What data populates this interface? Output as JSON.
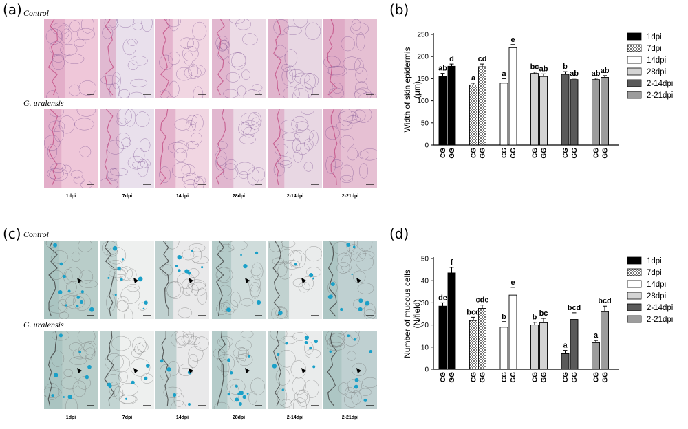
{
  "panels": {
    "a": {
      "label": "(a)",
      "row_labels": [
        "Control",
        "G. uralensis"
      ],
      "col_labels": [
        "1dpi",
        "7dpi",
        "14dpi",
        "28dpi",
        "2-14dpi",
        "2-21dpi"
      ],
      "stain": "he"
    },
    "b": {
      "label": "(b)"
    },
    "c": {
      "label": "(c)",
      "row_labels": [
        "Control",
        "G. uralensis"
      ],
      "col_labels": [
        "1dpi",
        "7dpi",
        "14dpi",
        "28dpi",
        "2-14dpi",
        "2-21dpi"
      ],
      "stain": "ab"
    },
    "d": {
      "label": "(d)"
    }
  },
  "legend": {
    "items": [
      "1dpi",
      "7dpi",
      "14dpi",
      "28dpi",
      "2-14dpi",
      "2-21dpi"
    ],
    "fills": [
      "#000000",
      "pattern",
      "#ffffff",
      "#d4d4d4",
      "#5a5a5a",
      "#9c9c9c"
    ]
  },
  "tick_group_labels": [
    "CG",
    "GG"
  ],
  "chart_data": [
    {
      "type": "bar",
      "ylabel": "Width of skin epidermis (μm)",
      "ylabel_lines": [
        "Width of skin epidermis",
        "(μm)"
      ],
      "ylim": [
        0,
        250
      ],
      "yticks": [
        0,
        50,
        100,
        150,
        200,
        250
      ],
      "groups": [
        "1dpi",
        "7dpi",
        "14dpi",
        "28dpi",
        "2-14dpi",
        "2-21dpi"
      ],
      "categories": [
        "CG",
        "GG"
      ],
      "series": [
        {
          "name": "1dpi",
          "values": [
            155,
            178
          ],
          "errors": [
            7,
            5
          ],
          "letters": [
            "ab",
            "d"
          ]
        },
        {
          "name": "7dpi",
          "values": [
            136,
            177
          ],
          "errors": [
            4,
            6
          ],
          "letters": [
            "a",
            "cd"
          ]
        },
        {
          "name": "14dpi",
          "values": [
            140,
            220
          ],
          "errors": [
            10,
            7
          ],
          "letters": [
            "a",
            "e"
          ]
        },
        {
          "name": "28dpi",
          "values": [
            162,
            155
          ],
          "errors": [
            3,
            6
          ],
          "letters": [
            "bc",
            "ab"
          ]
        },
        {
          "name": "2-14dpi",
          "values": [
            160,
            148
          ],
          "errors": [
            6,
            3
          ],
          "letters": [
            "b",
            "ab"
          ]
        },
        {
          "name": "2-21dpi",
          "values": [
            148,
            153
          ],
          "errors": [
            3,
            4
          ],
          "letters": [
            "ab",
            "ab"
          ]
        }
      ]
    },
    {
      "type": "bar",
      "ylabel": "Number of mucous cells (N/field)",
      "ylabel_lines": [
        "Number of mucous cells",
        "(N/field)"
      ],
      "ylim": [
        0,
        50
      ],
      "yticks": [
        0,
        10,
        20,
        30,
        40,
        50
      ],
      "groups": [
        "1dpi",
        "7dpi",
        "14dpi",
        "28dpi",
        "2-14dpi",
        "2-21dpi"
      ],
      "categories": [
        "CG",
        "GG"
      ],
      "series": [
        {
          "name": "1dpi",
          "values": [
            28.5,
            43.5
          ],
          "errors": [
            1.5,
            2.5
          ],
          "letters": [
            "de",
            "f"
          ]
        },
        {
          "name": "7dpi",
          "values": [
            22,
            27.5
          ],
          "errors": [
            1.5,
            1.5
          ],
          "letters": [
            "bcd",
            "cde"
          ]
        },
        {
          "name": "14dpi",
          "values": [
            19,
            33.5
          ],
          "errors": [
            2.5,
            3.5
          ],
          "letters": [
            "b",
            "e"
          ]
        },
        {
          "name": "28dpi",
          "values": [
            20,
            21
          ],
          "errors": [
            1.2,
            2
          ],
          "letters": [
            "b",
            "bc"
          ]
        },
        {
          "name": "2-14dpi",
          "values": [
            7,
            22.5
          ],
          "errors": [
            1.5,
            3
          ],
          "letters": [
            "a",
            "bcd"
          ]
        },
        {
          "name": "2-21dpi",
          "values": [
            12,
            26
          ],
          "errors": [
            1,
            2.5
          ],
          "letters": [
            "a",
            "bcd"
          ]
        }
      ]
    }
  ]
}
